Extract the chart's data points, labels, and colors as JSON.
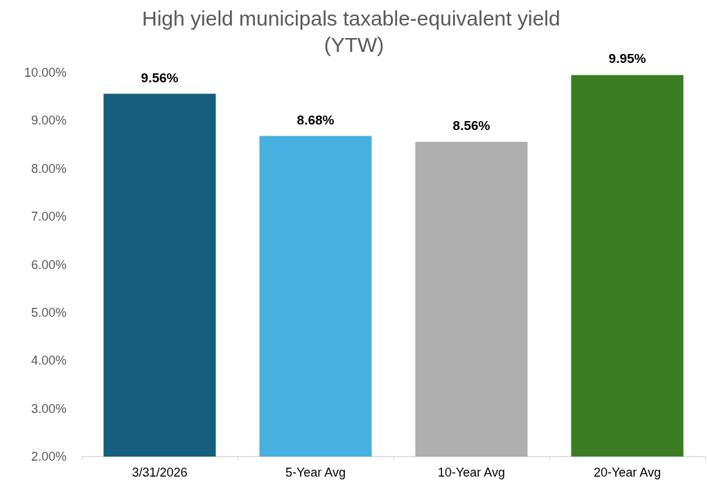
{
  "chart_data": {
    "type": "bar",
    "title": "High yield municipals taxable-equivalent yield (YTW)",
    "categories": [
      "3/31/2026",
      "5-Year Avg",
      "10-Year Avg",
      "20-Year Avg"
    ],
    "values": [
      9.56,
      8.68,
      8.56,
      9.95
    ],
    "colors": [
      "#175e7e",
      "#47b0e0",
      "#afafaf",
      "#3a7d23"
    ],
    "value_labels": [
      "9.56%",
      "8.68%",
      "8.56%",
      "9.95%"
    ],
    "ylim": [
      2,
      10
    ],
    "yticks": [
      {
        "value": 2,
        "label": "2.00%"
      },
      {
        "value": 3,
        "label": "3.00%"
      },
      {
        "value": 4,
        "label": "4.00%"
      },
      {
        "value": 5,
        "label": "5.00%"
      },
      {
        "value": 6,
        "label": "6.00%"
      },
      {
        "value": 7,
        "label": "7.00%"
      },
      {
        "value": 8,
        "label": "8.00%"
      },
      {
        "value": 9,
        "label": "9.00%"
      },
      {
        "value": 10,
        "label": "10.00%"
      }
    ],
    "grid": false
  }
}
